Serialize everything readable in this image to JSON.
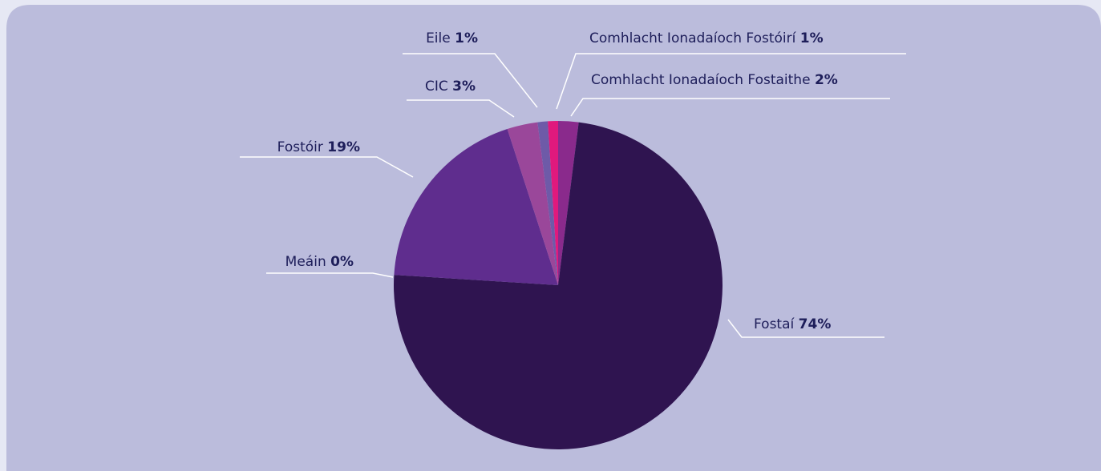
{
  "chart_data": {
    "type": "pie",
    "labels": [
      "Comhlacht Ionadaíoch Fostaithe",
      "Fostaí",
      "Meáin",
      "Fostóir",
      "CIC",
      "Eile",
      "Comhlacht Ionadaíoch Fostóirí"
    ],
    "values": [
      2,
      74,
      0,
      19,
      3,
      1,
      1
    ],
    "value_labels": [
      "2%",
      "74%",
      "0%",
      "19%",
      "3%",
      "1%",
      "1%"
    ],
    "colors": [
      "#8a2a8c",
      "#2f1450",
      "#5a2a88",
      "#5f2d8e",
      "#9a479a",
      "#6e5aa8",
      "#e0197d"
    ]
  }
}
